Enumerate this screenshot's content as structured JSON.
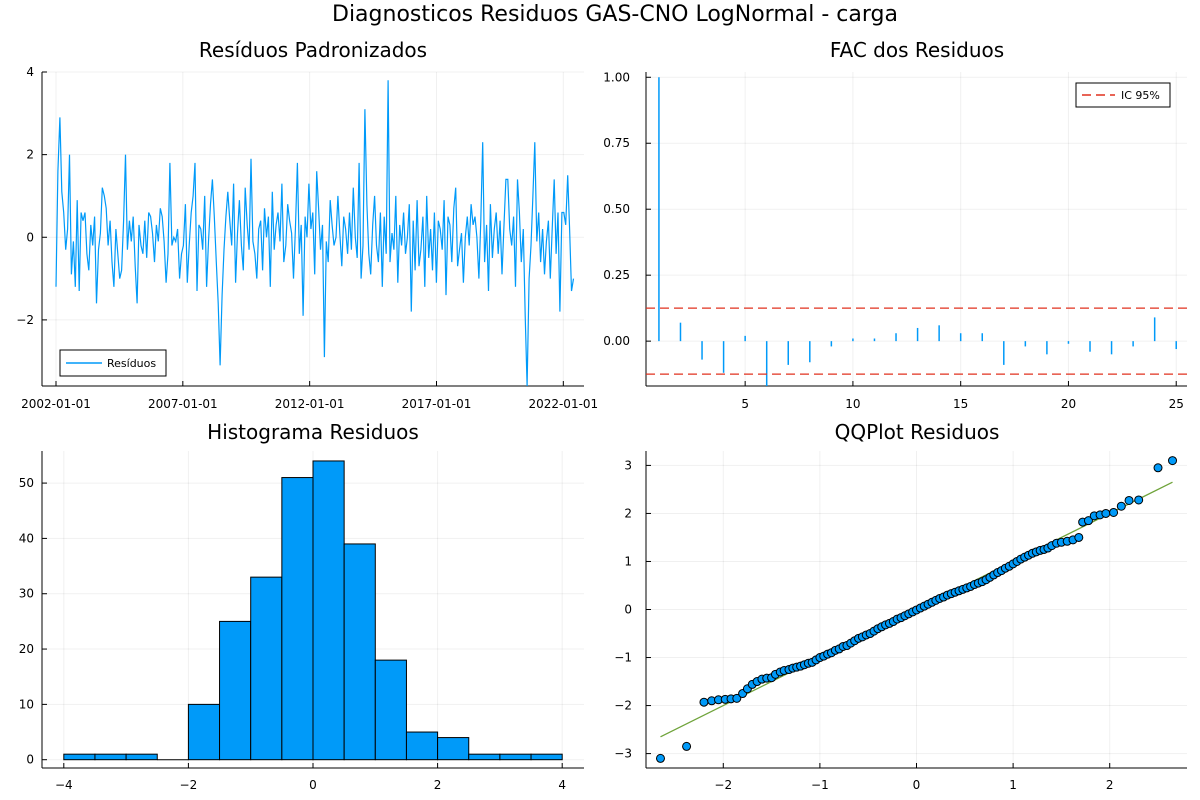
{
  "figure": {
    "title": "Diagnosticos Residuos GAS-CNO LogNormal - carga"
  },
  "colors": {
    "series": "#009af9",
    "ci": "#e26f46",
    "ci_line": "#e0301e",
    "refline": "#6fa33a"
  },
  "chart_data": [
    {
      "type": "line",
      "title": "Resíduos Padronizados",
      "legend": {
        "entries": [
          "Resíduos"
        ],
        "placement": "bottom-left"
      },
      "x_ticks": [
        "2002-01-01",
        "2007-01-01",
        "2012-01-01",
        "2017-01-01",
        "2022-01-01"
      ],
      "y_ticks": [
        "−2",
        "0",
        "2",
        "4"
      ],
      "y_tick_values": [
        -2,
        0,
        2,
        4
      ],
      "x_range": [
        2002.0,
        2022.5
      ],
      "ylim": [
        -3.6,
        4.0
      ],
      "grid": true,
      "series": [
        {
          "name": "Resíduos",
          "values": [
            -1.2,
            1.6,
            2.9,
            1.1,
            0.6,
            -0.3,
            0.2,
            2.0,
            -0.9,
            -0.1,
            -1.2,
            0.9,
            -1.3,
            0.6,
            0.4,
            0.6,
            -0.4,
            -0.8,
            0.3,
            -0.2,
            0.5,
            -1.6,
            -0.3,
            0.1,
            1.2,
            1.0,
            0.7,
            -0.2,
            0.4,
            -0.6,
            -1.2,
            0.2,
            -0.4,
            -1.0,
            -0.8,
            0.4,
            2.0,
            -0.3,
            0.4,
            -0.1,
            0.5,
            -0.7,
            -1.6,
            0.3,
            -0.2,
            -0.4,
            0.4,
            -0.5,
            0.6,
            0.5,
            0.1,
            -0.6,
            0.3,
            -0.1,
            0.7,
            0.5,
            -0.1,
            -1.1,
            -0.4,
            1.8,
            -0.2,
            0.0,
            -0.1,
            0.2,
            -1.0,
            -0.4,
            -0.2,
            0.8,
            -1.1,
            -0.2,
            0.6,
            1.0,
            1.8,
            -1.3,
            0.3,
            0.2,
            -0.3,
            1.0,
            -1.2,
            -0.1,
            0.8,
            1.4,
            0.5,
            -0.6,
            -1.6,
            -3.1,
            -1.4,
            -0.3,
            0.5,
            1.1,
            0.4,
            -0.2,
            1.3,
            -1.1,
            0.1,
            0.9,
            -0.2,
            -0.8,
            1.2,
            0.3,
            -0.3,
            1.9,
            -0.1,
            -0.4,
            -1.0,
            0.2,
            0.4,
            -0.8,
            0.7,
            0.0,
            0.5,
            -1.2,
            1.1,
            -0.3,
            0.3,
            0.6,
            -0.1,
            1.3,
            -0.6,
            -0.2,
            0.8,
            0.4,
            0.1,
            -1.0,
            0.2,
            1.8,
            -0.4,
            0.3,
            -1.9,
            0.5,
            0.0,
            1.3,
            0.2,
            0.6,
            -0.9,
            1.6,
            0.7,
            -0.3,
            0.3,
            -2.9,
            -0.1,
            -0.6,
            0.9,
            0.3,
            -0.2,
            0.0,
            1.0,
            0.1,
            -0.7,
            0.5,
            0.2,
            -0.4,
            0.6,
            -0.3,
            1.2,
            0.0,
            -0.5,
            1.8,
            -1.0,
            -0.2,
            3.1,
            0.8,
            -0.4,
            -0.9,
            0.3,
            1.0,
            -0.2,
            -0.6,
            0.6,
            -1.2,
            0.5,
            -0.4,
            3.8,
            -0.6,
            0.1,
            -0.3,
            1.0,
            -1.1,
            0.3,
            -0.2,
            0.6,
            -0.4,
            0.0,
            0.8,
            -1.8,
            0.4,
            -0.8,
            0.9,
            -0.7,
            -0.3,
            0.5,
            -1.2,
            1.0,
            -0.5,
            0.2,
            -0.8,
            0.6,
            -1.1,
            0.4,
            0.2,
            -0.3,
            0.9,
            -1.4,
            0.5,
            0.3,
            -0.6,
            0.7,
            1.2,
            -0.7,
            -0.3,
            0.1,
            -1.1,
            0.0,
            0.5,
            -0.2,
            0.8,
            0.3,
            0.5,
            0.0,
            -1.0,
            0.4,
            2.3,
            -0.6,
            0.3,
            -1.3,
            0.8,
            -0.5,
            0.2,
            0.6,
            -0.4,
            0.4,
            -0.9,
            0.3,
            1.4,
            1.4,
            0.2,
            -0.2,
            0.5,
            -1.2,
            1.4,
            0.6,
            -0.6,
            0.2,
            -1.9,
            -3.6,
            -1.0,
            -0.2,
            1.0,
            2.3,
            -0.1,
            0.6,
            -0.6,
            0.2,
            -0.9,
            -0.1,
            0.4,
            -1.0,
            0.2,
            1.4,
            -0.4,
            0.6,
            -1.8,
            0.6,
            0.6,
            0.3,
            1.5,
            0.2,
            -1.3,
            -1.0
          ]
        }
      ]
    },
    {
      "type": "bar",
      "title": "FAC dos Residuos",
      "legend": {
        "entries": [
          "IC 95%"
        ],
        "placement": "top-right"
      },
      "x_ticks": [
        "5",
        "10",
        "15",
        "20",
        "25"
      ],
      "x_tick_values": [
        5,
        10,
        15,
        20,
        25
      ],
      "y_ticks": [
        "0.00",
        "0.25",
        "0.50",
        "0.75",
        "1.00"
      ],
      "y_tick_values": [
        0,
        0.25,
        0.5,
        0.75,
        1.0
      ],
      "xlim": [
        0.4,
        25.5
      ],
      "ylim": [
        -0.17,
        1.02
      ],
      "ci": 0.125,
      "grid": true,
      "x": [
        1,
        2,
        3,
        4,
        5,
        6,
        7,
        8,
        9,
        10,
        11,
        12,
        13,
        14,
        15,
        16,
        17,
        18,
        19,
        20,
        21,
        22,
        23,
        24,
        25
      ],
      "values": [
        1.0,
        0.07,
        -0.07,
        -0.12,
        0.02,
        -0.17,
        -0.09,
        -0.08,
        -0.02,
        0.01,
        0.01,
        0.03,
        0.05,
        0.06,
        0.03,
        0.03,
        -0.09,
        -0.02,
        -0.05,
        -0.01,
        -0.04,
        -0.05,
        -0.02,
        0.09,
        -0.03
      ]
    },
    {
      "type": "bar",
      "title": "Histograma Residuos",
      "x_ticks": [
        "−4",
        "−2",
        "0",
        "2",
        "4"
      ],
      "x_tick_values": [
        -4,
        -2,
        0,
        2,
        4
      ],
      "y_ticks": [
        "0",
        "10",
        "20",
        "30",
        "40",
        "50"
      ],
      "y_tick_values": [
        0,
        10,
        20,
        30,
        40,
        50
      ],
      "xlim": [
        -4.35,
        4.35
      ],
      "ylim": [
        -1.5,
        55.8
      ],
      "grid": true,
      "bin_edges": [
        -4,
        -3.5,
        -3,
        -2.5,
        -2,
        -1.5,
        -1,
        -0.5,
        0,
        0.5,
        1,
        1.5,
        2,
        2.5,
        3,
        3.5,
        4
      ],
      "values": [
        1,
        1,
        1,
        0,
        10,
        25,
        33,
        51,
        54,
        39,
        18,
        5,
        4,
        1,
        1,
        1
      ]
    },
    {
      "type": "scatter",
      "title": "QQPlot Residuos",
      "x_ticks": [
        "−2",
        "−1",
        "0",
        "1",
        "2"
      ],
      "x_tick_values": [
        -2,
        -1,
        0,
        1,
        2
      ],
      "y_ticks": [
        "−3",
        "−2",
        "−1",
        "0",
        "1",
        "2",
        "3"
      ],
      "y_tick_values": [
        -3,
        -2,
        -1,
        0,
        1,
        2,
        3
      ],
      "xlim": [
        -2.8,
        2.8
      ],
      "ylim": [
        -3.3,
        3.3
      ],
      "grid": true,
      "reference_line": {
        "x": [
          -2.65,
          2.65
        ],
        "y": [
          -2.65,
          2.65
        ]
      },
      "points": [
        [
          -2.65,
          -3.1
        ],
        [
          -2.38,
          -2.85
        ],
        [
          -2.2,
          -1.93
        ],
        [
          -2.12,
          -1.9
        ],
        [
          -2.05,
          -1.88
        ],
        [
          -1.98,
          -1.87
        ],
        [
          -1.92,
          -1.86
        ],
        [
          -1.86,
          -1.85
        ],
        [
          -1.8,
          -1.75
        ],
        [
          -1.75,
          -1.65
        ],
        [
          -1.7,
          -1.56
        ],
        [
          -1.65,
          -1.5
        ],
        [
          -1.6,
          -1.45
        ],
        [
          -1.55,
          -1.43
        ],
        [
          -1.5,
          -1.42
        ],
        [
          -1.46,
          -1.35
        ],
        [
          -1.41,
          -1.3
        ],
        [
          -1.37,
          -1.27
        ],
        [
          -1.32,
          -1.25
        ],
        [
          -1.28,
          -1.22
        ],
        [
          -1.24,
          -1.2
        ],
        [
          -1.2,
          -1.18
        ],
        [
          -1.16,
          -1.15
        ],
        [
          -1.12,
          -1.12
        ],
        [
          -1.08,
          -1.1
        ],
        [
          -1.04,
          -1.05
        ],
        [
          -1.0,
          -1.0
        ],
        [
          -0.96,
          -0.97
        ],
        [
          -0.92,
          -0.93
        ],
        [
          -0.88,
          -0.9
        ],
        [
          -0.84,
          -0.85
        ],
        [
          -0.8,
          -0.82
        ],
        [
          -0.76,
          -0.77
        ],
        [
          -0.72,
          -0.75
        ],
        [
          -0.68,
          -0.7
        ],
        [
          -0.64,
          -0.65
        ],
        [
          -0.6,
          -0.6
        ],
        [
          -0.56,
          -0.57
        ],
        [
          -0.52,
          -0.53
        ],
        [
          -0.48,
          -0.5
        ],
        [
          -0.44,
          -0.45
        ],
        [
          -0.4,
          -0.4
        ],
        [
          -0.36,
          -0.36
        ],
        [
          -0.32,
          -0.32
        ],
        [
          -0.28,
          -0.29
        ],
        [
          -0.24,
          -0.25
        ],
        [
          -0.2,
          -0.2
        ],
        [
          -0.16,
          -0.17
        ],
        [
          -0.12,
          -0.13
        ],
        [
          -0.08,
          -0.09
        ],
        [
          -0.04,
          -0.05
        ],
        [
          0.0,
          -0.01
        ],
        [
          0.04,
          0.03
        ],
        [
          0.08,
          0.07
        ],
        [
          0.12,
          0.11
        ],
        [
          0.16,
          0.15
        ],
        [
          0.2,
          0.19
        ],
        [
          0.24,
          0.23
        ],
        [
          0.28,
          0.26
        ],
        [
          0.32,
          0.3
        ],
        [
          0.36,
          0.33
        ],
        [
          0.4,
          0.36
        ],
        [
          0.44,
          0.39
        ],
        [
          0.48,
          0.42
        ],
        [
          0.52,
          0.45
        ],
        [
          0.56,
          0.48
        ],
        [
          0.6,
          0.52
        ],
        [
          0.64,
          0.55
        ],
        [
          0.68,
          0.58
        ],
        [
          0.72,
          0.62
        ],
        [
          0.76,
          0.67
        ],
        [
          0.8,
          0.72
        ],
        [
          0.84,
          0.77
        ],
        [
          0.88,
          0.81
        ],
        [
          0.92,
          0.86
        ],
        [
          0.96,
          0.9
        ],
        [
          1.0,
          0.95
        ],
        [
          1.04,
          1.0
        ],
        [
          1.08,
          1.05
        ],
        [
          1.12,
          1.09
        ],
        [
          1.16,
          1.13
        ],
        [
          1.2,
          1.17
        ],
        [
          1.24,
          1.2
        ],
        [
          1.28,
          1.23
        ],
        [
          1.32,
          1.25
        ],
        [
          1.36,
          1.28
        ],
        [
          1.4,
          1.33
        ],
        [
          1.45,
          1.38
        ],
        [
          1.5,
          1.4
        ],
        [
          1.56,
          1.42
        ],
        [
          1.62,
          1.45
        ],
        [
          1.68,
          1.5
        ],
        [
          1.72,
          1.82
        ],
        [
          1.78,
          1.85
        ],
        [
          1.84,
          1.95
        ],
        [
          1.9,
          1.97
        ],
        [
          1.96,
          2.0
        ],
        [
          2.04,
          2.02
        ],
        [
          2.12,
          2.15
        ],
        [
          2.2,
          2.27
        ],
        [
          2.3,
          2.28
        ],
        [
          2.5,
          2.95
        ],
        [
          2.65,
          3.1
        ]
      ]
    }
  ]
}
